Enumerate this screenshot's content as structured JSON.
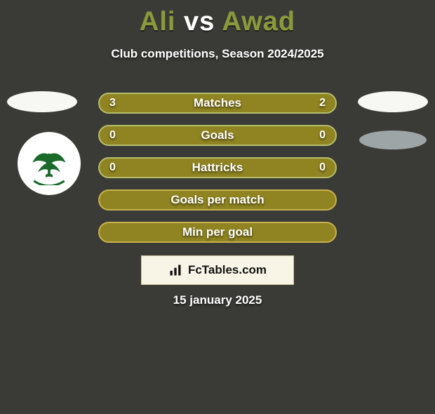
{
  "title": {
    "left": "Ali",
    "mid": "vs",
    "right": "Awad",
    "color_side": "#8a9a3a",
    "color_mid": "#ffffff"
  },
  "subtitle": "Club competitions, Season 2024/2025",
  "background_color": "#3a3a36",
  "ellipses": {
    "left": {
      "color": "#f7f7f3"
    },
    "right1": {
      "color": "#f7f7f3"
    },
    "right2": {
      "color": "#9ea5a7"
    }
  },
  "logo": {
    "bg": "#ffffff",
    "icon_color": "#1a6b2a",
    "name": "al-masry-logo"
  },
  "bars": {
    "fill": "#8f8421",
    "font_color": "#ffffff",
    "items": [
      {
        "label": "Matches",
        "left": "3",
        "right": "2",
        "border": "#b6be6b"
      },
      {
        "label": "Goals",
        "left": "0",
        "right": "0",
        "border": "#b6be6b"
      },
      {
        "label": "Hattricks",
        "left": "0",
        "right": "0",
        "border": "#b6be6b"
      },
      {
        "label": "Goals per match",
        "left": "",
        "right": "",
        "border": "#c9b24f"
      },
      {
        "label": "Min per goal",
        "left": "",
        "right": "",
        "border": "#c9b24f"
      }
    ]
  },
  "badge": {
    "text": "FcTables.com",
    "bg": "#f8f5e6",
    "border": "#cfc7a0",
    "icon": "bar-chart-icon"
  },
  "date": "15 january 2025"
}
